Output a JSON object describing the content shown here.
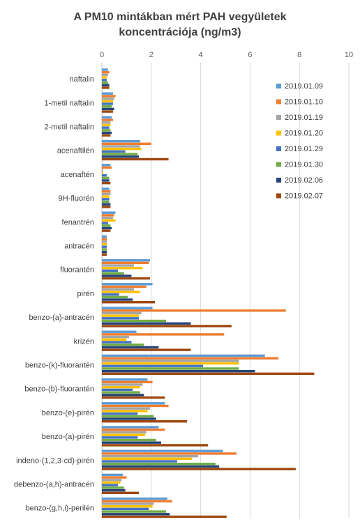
{
  "chart_data": {
    "type": "bar",
    "orientation": "horizontal",
    "title": [
      "A PM10 mintákban mért PAH vegyületek",
      "koncentrációja (ng/m3)"
    ],
    "xlim": [
      0,
      10
    ],
    "xticks": [
      0,
      2,
      4,
      6,
      8,
      10
    ],
    "grid": true,
    "legend_position": "right",
    "categories": [
      "naftalin",
      "1-metil naftalin",
      "2-metil naftalin",
      "acenaftilén",
      "acenaftén",
      "9H-fluorén",
      "fenantrén",
      "antracén",
      "fluorantén",
      "pirén",
      "benzo-(a)-antracén",
      "krizén",
      "benzo-(k)-fluorantén",
      "benzo-(b)-fluorantén",
      "benzo-(e)-pirén",
      "benzo-(a)-pirén",
      "indeno-(1,2,3-cd)-pirén",
      "debenzo-(a,h)-antracén",
      "benzo-(g,h,i)-perilén"
    ],
    "series": [
      {
        "name": "2019.01.09",
        "color": "#5B9BD5",
        "values": [
          0.25,
          0.45,
          0.4,
          1.55,
          0.35,
          0.3,
          0.55,
          0.2,
          1.95,
          2.05,
          2.05,
          1.4,
          6.6,
          1.85,
          2.55,
          2.3,
          4.9,
          0.85,
          2.65
        ]
      },
      {
        "name": "2019.01.10",
        "color": "#ED7D31",
        "values": [
          0.3,
          0.55,
          0.45,
          2.0,
          0.4,
          0.35,
          0.5,
          0.2,
          1.9,
          1.8,
          7.45,
          4.95,
          7.15,
          2.05,
          2.7,
          2.55,
          5.45,
          1.0,
          2.85
        ]
      },
      {
        "name": "2019.01.19",
        "color": "#A5A5A5",
        "values": [
          0.25,
          0.5,
          0.35,
          1.55,
          0.05,
          0.35,
          0.45,
          0.2,
          1.3,
          1.3,
          1.6,
          1.1,
          5.55,
          1.65,
          1.95,
          1.8,
          3.9,
          0.8,
          2.1
        ]
      },
      {
        "name": "2019.01.20",
        "color": "#FFC000",
        "values": [
          0.2,
          0.45,
          0.35,
          1.6,
          0.05,
          0.3,
          0.55,
          0.2,
          1.65,
          1.55,
          1.5,
          1.0,
          5.55,
          1.55,
          1.85,
          1.75,
          3.65,
          0.75,
          2.05
        ]
      },
      {
        "name": "2019.01.29",
        "color": "#4472C4",
        "values": [
          0.2,
          0.45,
          0.3,
          0.95,
          0.2,
          0.3,
          0.25,
          0.2,
          0.65,
          0.7,
          1.5,
          1.2,
          4.1,
          1.25,
          1.45,
          1.45,
          3.05,
          0.65,
          1.9
        ]
      },
      {
        "name": "2019.01.30",
        "color": "#70AD47",
        "values": [
          0.25,
          0.4,
          0.35,
          1.45,
          0.3,
          0.3,
          0.35,
          0.2,
          0.9,
          1.05,
          2.6,
          1.7,
          5.55,
          1.55,
          2.1,
          2.2,
          4.6,
          0.9,
          2.6
        ]
      },
      {
        "name": "2019.02.06",
        "color": "#264478",
        "values": [
          0.3,
          0.5,
          0.4,
          1.5,
          0.3,
          0.35,
          0.4,
          0.2,
          1.2,
          1.25,
          3.6,
          2.3,
          6.2,
          1.7,
          2.2,
          2.4,
          4.75,
          0.95,
          2.75
        ]
      },
      {
        "name": "2019.02.07",
        "color": "#9E480E",
        "values": [
          0.3,
          0.45,
          0.35,
          2.7,
          0.35,
          0.35,
          0.35,
          0.2,
          1.95,
          2.15,
          5.25,
          3.6,
          8.6,
          2.55,
          3.45,
          4.3,
          7.85,
          1.5,
          5.05
        ]
      }
    ]
  }
}
